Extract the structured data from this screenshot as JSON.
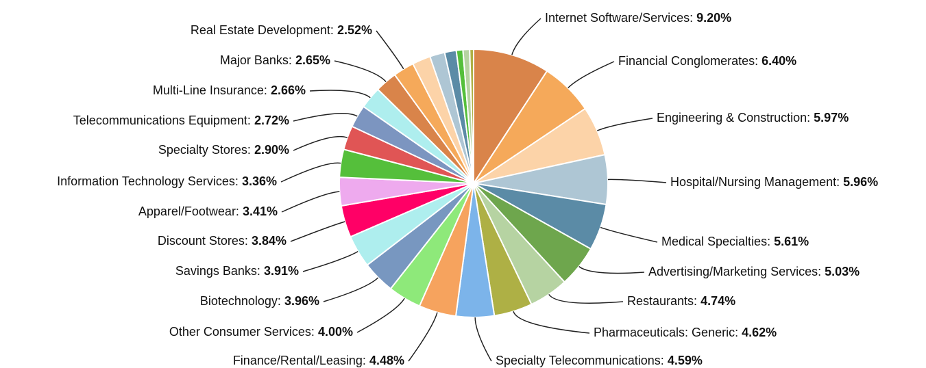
{
  "chart_data": {
    "type": "pie",
    "categories": [
      "Internet Software/Services:",
      "Financial Conglomerates:",
      "Engineering & Construction:",
      "Hospital/Nursing Management:",
      "Medical Specialties:",
      "Advertising/Marketing Services:",
      "Restaurants:",
      "Pharmaceuticals: Generic:",
      "Specialty Telecommunications:",
      "Finance/Rental/Leasing:",
      "Other Consumer Services:",
      "Biotechnology:",
      "Savings Banks:",
      "Discount Stores:",
      "Apparel/Footwear:",
      "Information Technology Services:",
      "Specialty Stores:",
      "Telecommunications Equipment:",
      "Multi-Line Insurance:",
      "Major Banks:",
      "Real Estate Development:",
      null,
      null,
      null,
      null,
      null,
      null
    ],
    "values": [
      9.2,
      6.4,
      5.97,
      5.96,
      5.61,
      5.03,
      4.74,
      4.62,
      4.59,
      4.48,
      4.0,
      3.96,
      3.91,
      3.84,
      3.41,
      3.36,
      2.9,
      2.72,
      2.66,
      2.65,
      2.52,
      2.2,
      1.8,
      1.4,
      0.8,
      0.8,
      0.47
    ],
    "value_labels": [
      "9.20%",
      "6.40%",
      "5.97%",
      "5.96%",
      "5.61%",
      "5.03%",
      "4.74%",
      "4.62%",
      "4.59%",
      "4.48%",
      "4.00%",
      "3.96%",
      "3.91%",
      "3.84%",
      "3.41%",
      "3.36%",
      "2.90%",
      "2.72%",
      "2.66%",
      "2.65%",
      "2.52%",
      null,
      null,
      null,
      null,
      null,
      null
    ],
    "colors": [
      "#d9844a",
      "#f5a95a",
      "#fcd3a8",
      "#aec6d4",
      "#5b8ba6",
      "#6ea64d",
      "#b6d3a2",
      "#aeb045",
      "#7cb4ea",
      "#f6a35e",
      "#8ee97a",
      "#7897c0",
      "#aeeeee",
      "#ff0066",
      "#eeaaee",
      "#55bf3b",
      "#e05555",
      "#7c95c0",
      "#aeeeee",
      "#d9844a",
      "#f5a95a",
      "#fcd3a8",
      "#aec6d4",
      "#5b8ba6",
      "#55bf3b",
      "#b6d3a2",
      "#aeb045"
    ]
  }
}
